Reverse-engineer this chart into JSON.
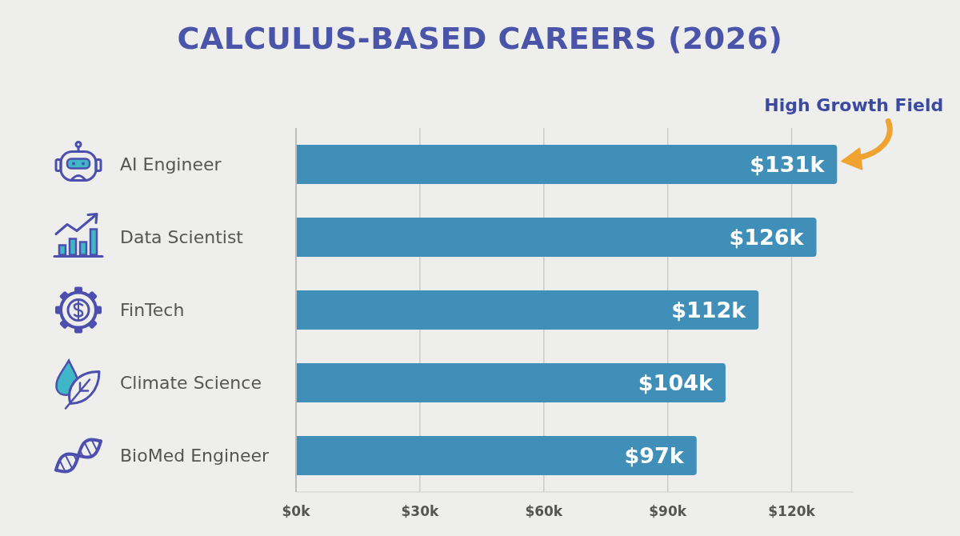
{
  "chart_data": {
    "type": "bar",
    "orientation": "horizontal",
    "title": "CALCULUS-BASED CAREERS (2026)",
    "categories": [
      "AI Engineer",
      "Data Scientist",
      "FinTech",
      "Climate Science",
      "BioMed Engineer"
    ],
    "values": [
      131,
      126,
      112,
      104,
      97
    ],
    "color": "#3f8fb8",
    "value_labels": [
      "$131k",
      "$126k",
      "$112k",
      "$104k",
      "$97k"
    ],
    "xlim": [
      0,
      135
    ],
    "xticks": [
      {
        "value": 0,
        "label": "$0k"
      },
      {
        "value": 30,
        "label": "$30k"
      },
      {
        "value": 60,
        "label": "$60k"
      },
      {
        "value": 90,
        "label": "$90k"
      },
      {
        "value": 120,
        "label": "$120k"
      }
    ],
    "grid": "x",
    "annotations": [
      {
        "text": "High Growth Field",
        "x": 131,
        "y": "AI Engineer"
      }
    ]
  }
}
